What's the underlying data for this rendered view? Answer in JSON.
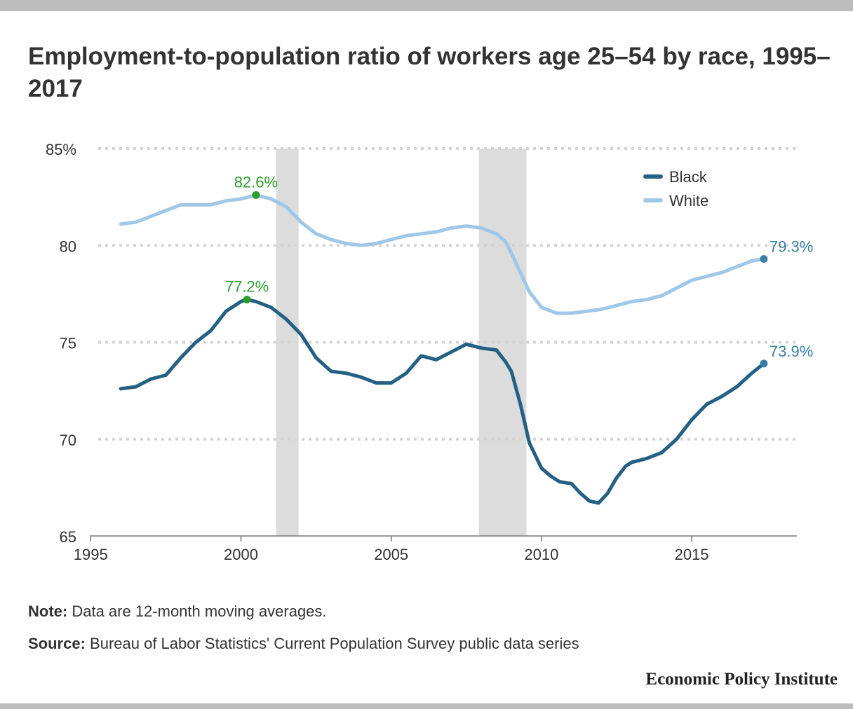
{
  "title": "Employment-to-population ratio of workers age 25–54 by race, 1995–2017",
  "note": {
    "label": "Note:",
    "text": " Data are 12-month moving averages."
  },
  "source": {
    "label": "Source:",
    "text": " Bureau of Labor Statistics' Current Population Survey public data series"
  },
  "logo": "Economic Policy Institute",
  "chart_data": {
    "type": "line",
    "ylim": [
      65,
      85
    ],
    "xlim": [
      1994.9,
      2018.5
    ],
    "y_ticks": [
      {
        "value": 65,
        "label": "65"
      },
      {
        "value": 70,
        "label": "70"
      },
      {
        "value": 75,
        "label": "75"
      },
      {
        "value": 80,
        "label": "80"
      },
      {
        "value": 85,
        "label": "85%"
      }
    ],
    "x_ticks": [
      {
        "value": 1995,
        "label": "1995"
      },
      {
        "value": 2000,
        "label": "2000"
      },
      {
        "value": 2005,
        "label": "2005"
      },
      {
        "value": 2010,
        "label": "2010"
      },
      {
        "value": 2015,
        "label": "2015"
      }
    ],
    "grid": true,
    "legend_position": "top-right",
    "recessions": [
      {
        "start": 2001.17,
        "end": 2001.92
      },
      {
        "start": 2007.92,
        "end": 2009.5
      }
    ],
    "series": [
      {
        "name": "Black",
        "color": "#245f84",
        "values": [
          [
            1996.0,
            72.6
          ],
          [
            1996.5,
            72.7
          ],
          [
            1997.0,
            73.1
          ],
          [
            1997.5,
            73.3
          ],
          [
            1998.0,
            74.2
          ],
          [
            1998.5,
            75.0
          ],
          [
            1999.0,
            75.6
          ],
          [
            1999.5,
            76.6
          ],
          [
            2000.0,
            77.1
          ],
          [
            2000.2,
            77.2
          ],
          [
            2000.5,
            77.1
          ],
          [
            2001.0,
            76.8
          ],
          [
            2001.5,
            76.2
          ],
          [
            2002.0,
            75.4
          ],
          [
            2002.5,
            74.2
          ],
          [
            2003.0,
            73.5
          ],
          [
            2003.5,
            73.4
          ],
          [
            2004.0,
            73.2
          ],
          [
            2004.5,
            72.9
          ],
          [
            2005.0,
            72.9
          ],
          [
            2005.5,
            73.4
          ],
          [
            2006.0,
            74.3
          ],
          [
            2006.5,
            74.1
          ],
          [
            2007.0,
            74.5
          ],
          [
            2007.5,
            74.9
          ],
          [
            2008.0,
            74.7
          ],
          [
            2008.5,
            74.6
          ],
          [
            2008.8,
            74.0
          ],
          [
            2009.0,
            73.5
          ],
          [
            2009.3,
            71.8
          ],
          [
            2009.6,
            69.8
          ],
          [
            2010.0,
            68.5
          ],
          [
            2010.3,
            68.1
          ],
          [
            2010.6,
            67.8
          ],
          [
            2011.0,
            67.7
          ],
          [
            2011.3,
            67.2
          ],
          [
            2011.6,
            66.8
          ],
          [
            2011.9,
            66.7
          ],
          [
            2012.2,
            67.2
          ],
          [
            2012.5,
            68.0
          ],
          [
            2012.8,
            68.6
          ],
          [
            2013.0,
            68.8
          ],
          [
            2013.5,
            69.0
          ],
          [
            2014.0,
            69.3
          ],
          [
            2014.5,
            70.0
          ],
          [
            2015.0,
            71.0
          ],
          [
            2015.5,
            71.8
          ],
          [
            2016.0,
            72.2
          ],
          [
            2016.5,
            72.7
          ],
          [
            2017.0,
            73.4
          ],
          [
            2017.4,
            73.9
          ]
        ]
      },
      {
        "name": "White",
        "color": "#9fc8e8",
        "values": [
          [
            1996.0,
            81.1
          ],
          [
            1996.5,
            81.2
          ],
          [
            1997.0,
            81.5
          ],
          [
            1997.5,
            81.8
          ],
          [
            1998.0,
            82.1
          ],
          [
            1998.5,
            82.1
          ],
          [
            1999.0,
            82.1
          ],
          [
            1999.5,
            82.3
          ],
          [
            2000.0,
            82.4
          ],
          [
            2000.5,
            82.6
          ],
          [
            2001.0,
            82.4
          ],
          [
            2001.5,
            82.0
          ],
          [
            2002.0,
            81.2
          ],
          [
            2002.5,
            80.6
          ],
          [
            2003.0,
            80.3
          ],
          [
            2003.5,
            80.1
          ],
          [
            2004.0,
            80.0
          ],
          [
            2004.5,
            80.1
          ],
          [
            2005.0,
            80.3
          ],
          [
            2005.5,
            80.5
          ],
          [
            2006.0,
            80.6
          ],
          [
            2006.5,
            80.7
          ],
          [
            2007.0,
            80.9
          ],
          [
            2007.5,
            81.0
          ],
          [
            2008.0,
            80.9
          ],
          [
            2008.5,
            80.6
          ],
          [
            2008.8,
            80.2
          ],
          [
            2009.0,
            79.6
          ],
          [
            2009.3,
            78.6
          ],
          [
            2009.6,
            77.6
          ],
          [
            2010.0,
            76.8
          ],
          [
            2010.5,
            76.5
          ],
          [
            2011.0,
            76.5
          ],
          [
            2011.5,
            76.6
          ],
          [
            2012.0,
            76.7
          ],
          [
            2012.5,
            76.9
          ],
          [
            2013.0,
            77.1
          ],
          [
            2013.5,
            77.2
          ],
          [
            2014.0,
            77.4
          ],
          [
            2014.5,
            77.8
          ],
          [
            2015.0,
            78.2
          ],
          [
            2015.5,
            78.4
          ],
          [
            2016.0,
            78.6
          ],
          [
            2016.5,
            78.9
          ],
          [
            2017.0,
            79.2
          ],
          [
            2017.4,
            79.3
          ]
        ]
      }
    ],
    "annotations": [
      {
        "x": 2000.5,
        "y": 82.6,
        "label": "82.6%",
        "color": "#2a9d2a",
        "anchor": "middle"
      },
      {
        "x": 2000.2,
        "y": 77.2,
        "label": "77.2%",
        "color": "#2a9d2a",
        "anchor": "middle"
      },
      {
        "x": 2017.4,
        "y": 79.3,
        "label": "79.3%",
        "color": "#3a7fa6",
        "anchor": "end-right"
      },
      {
        "x": 2017.4,
        "y": 73.9,
        "label": "73.9%",
        "color": "#3a7fa6",
        "anchor": "end-right"
      }
    ]
  }
}
